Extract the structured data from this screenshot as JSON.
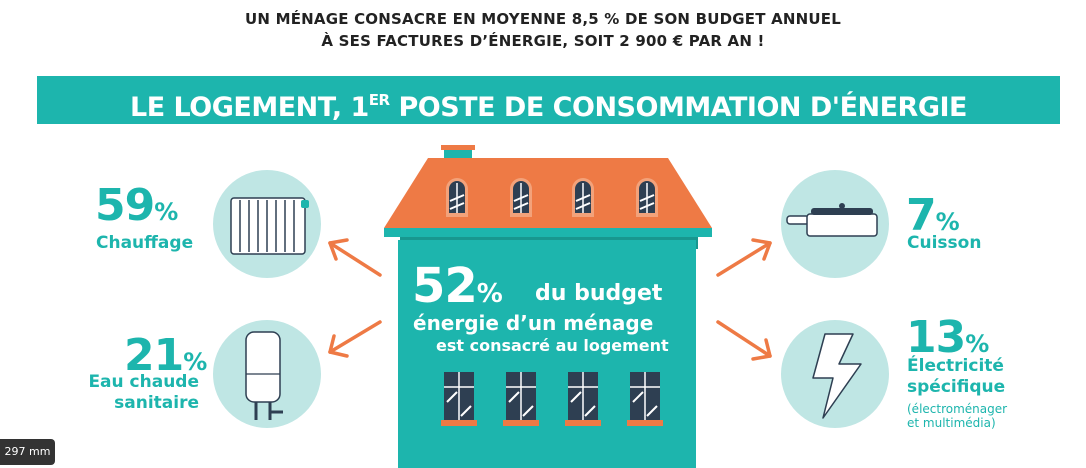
{
  "headline": {
    "line1": "UN MÉNAGE CONSACRE EN MOYENNE 8,5 % DE SON BUDGET ANNUEL",
    "line2": "À SES FACTURES D’ÉNERGIE, SOIT 2 900 € PAR AN !"
  },
  "banner": {
    "before": "LE LOGEMENT, 1",
    "sup": "ER",
    "after": " POSTE DE CONSOMMATION D'ÉNERGIE"
  },
  "center": {
    "percent": "52",
    "percent_sign": "%",
    "line1": "du budget",
    "line2": "énergie d’un ménage",
    "line3": "est consacré au logement"
  },
  "items": {
    "heating": {
      "percent": "59",
      "sign": "%",
      "label": "Chauffage",
      "icon": "radiator-icon"
    },
    "hot_water": {
      "percent": "21",
      "sign": "%",
      "label_line1": "Eau chaude",
      "label_line2": "sanitaire",
      "icon": "water-heater-icon"
    },
    "cooking": {
      "percent": "7",
      "sign": "%",
      "label": "Cuisson",
      "icon": "pan-icon"
    },
    "electricity": {
      "percent": "13",
      "sign": "%",
      "label_line1": "Électricité",
      "label_line2": "spécifique",
      "note_line1": "(électroménager",
      "note_line2": "et multimédia)",
      "icon": "lightning-icon"
    }
  },
  "overlay": {
    "scale_badge": "297 mm"
  },
  "colors": {
    "teal": "#1db5ad",
    "light_teal": "#bfe6e4",
    "roof_orange": "#ee7a45",
    "window_blue": "#34495e",
    "text_dark": "#222222"
  }
}
